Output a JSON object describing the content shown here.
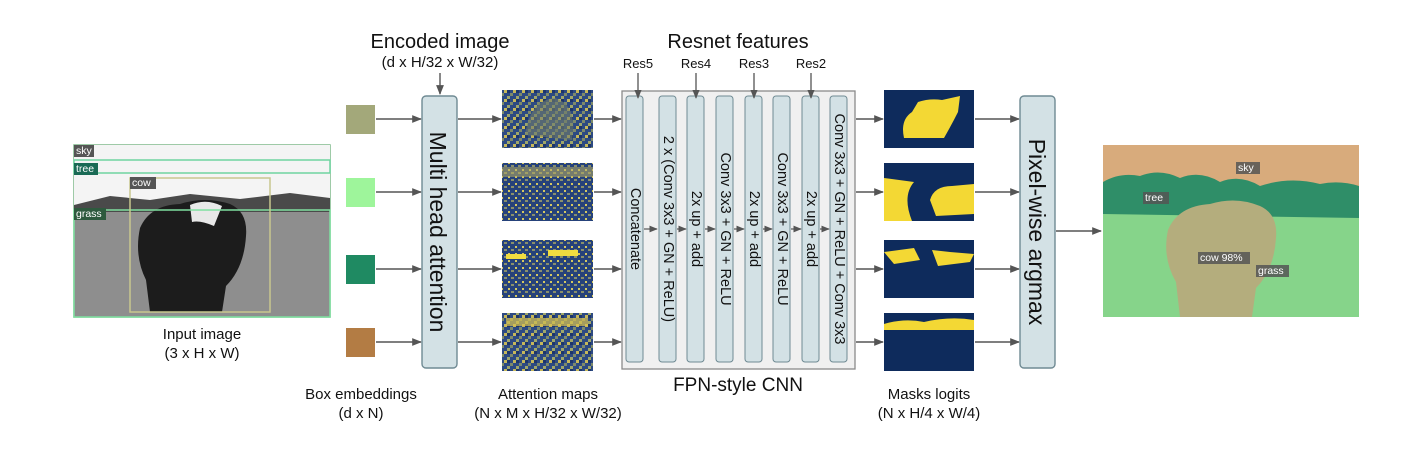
{
  "input": {
    "caption_line1": "Input image",
    "caption_line2": "(3 x H x W)",
    "labels": [
      "sky",
      "tree",
      "cow",
      "grass"
    ]
  },
  "encoded": {
    "title": "Encoded image",
    "subtitle": "(d x H/32 x W/32)"
  },
  "box_embeddings": {
    "caption_line1": "Box embeddings",
    "caption_line2": "(d x N)",
    "colors": [
      "#a3a87a",
      "#9ef59b",
      "#1f8a62",
      "#b37c44"
    ]
  },
  "mha": {
    "label": "Multi head attention"
  },
  "attention": {
    "caption_line1": "Attention maps",
    "caption_line2": "(N x M x H/32 x W/32)"
  },
  "fpn": {
    "title": "Resnet features",
    "caption": "FPN-style CNN",
    "res_labels": [
      "Res5",
      "Res4",
      "Res3",
      "Res2"
    ],
    "columns": [
      "Concatenate",
      "2 x (Conv 3x3 + GN + ReLU)",
      "2x up + add",
      "Conv 3x3 + GN + ReLU",
      "2x up + add",
      "Conv 3x3 + GN + ReLU",
      "2x up + add",
      "Conv 3x3 + GN + ReLU + Conv 3x3"
    ]
  },
  "masks": {
    "caption_line1": "Masks logits",
    "caption_line2": "(N x H/4 x W/4)"
  },
  "argmax": {
    "label": "Pixel-wise argmax"
  },
  "output": {
    "labels": [
      "sky",
      "tree",
      "cow 98%",
      "grass"
    ]
  },
  "colors": {
    "box_fill": "#d3e1e5",
    "box_stroke": "#6f8a93",
    "arrow": "#555555",
    "mask_bg": "#0e2b5c",
    "mask_fg": "#f3d834"
  }
}
